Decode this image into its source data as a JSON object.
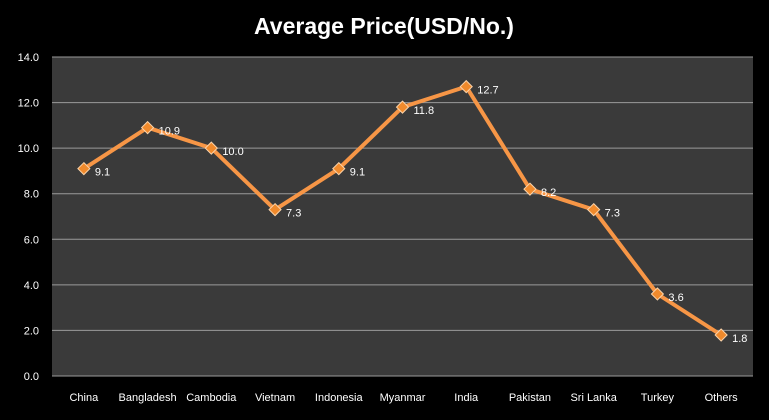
{
  "chart_data": {
    "type": "line",
    "title": "Average Price(USD/No.)",
    "categories": [
      "China",
      "Bangladesh",
      "Cambodia",
      "Vietnam",
      "Indonesia",
      "Myanmar",
      "India",
      "Pakistan",
      "Sri Lanka",
      "Turkey",
      "Others"
    ],
    "series": [
      {
        "values": [
          9.1,
          10.9,
          10.0,
          7.3,
          9.1,
          11.8,
          12.7,
          8.2,
          7.3,
          3.6,
          1.8
        ]
      }
    ],
    "data_labels": [
      "9.1",
      "10.9",
      "10.0",
      "7.3",
      "9.1",
      "11.8",
      "12.7",
      "8.2",
      "7.3",
      "3.6",
      "1.8"
    ],
    "yticks": [
      "0.0",
      "2.0",
      "4.0",
      "6.0",
      "8.0",
      "10.0",
      "12.0",
      "14.0"
    ],
    "ylim": [
      0,
      14
    ],
    "grid": true,
    "legend": "none",
    "colors": {
      "background": "#000000",
      "plot_area": "#3a3a3a",
      "gridline": "#9a9a9a",
      "line": "#f79646",
      "marker_fill": "#f08a2c",
      "marker_stroke": "#fbd3a9",
      "text": "#ffffff"
    }
  }
}
